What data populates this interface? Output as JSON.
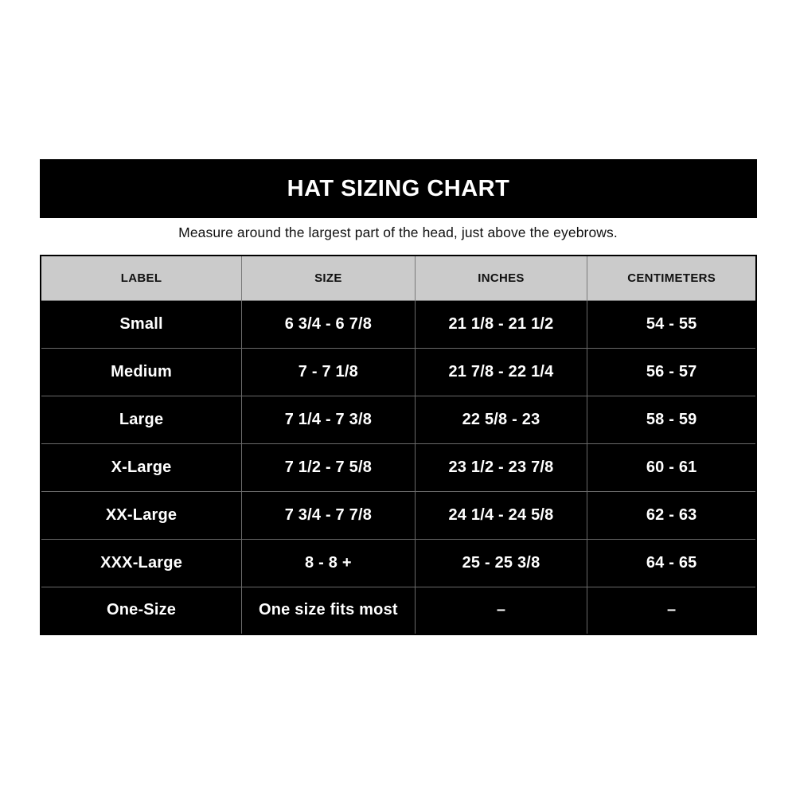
{
  "banner": {
    "title": "HAT SIZING CHART",
    "bg_color": "#000000",
    "text_color": "#ffffff"
  },
  "subtitle": "Measure around the largest part of the head, just above the eyebrows.",
  "table": {
    "header_bg": "#cbcbcb",
    "header_text_color": "#111111",
    "row_bg": "#000000",
    "row_text_color": "#ffffff",
    "grid_line_color": "#6a6a6a",
    "outer_border_color": "#000000",
    "columns": [
      "LABEL",
      "SIZE",
      "INCHES",
      "CENTIMETERS"
    ],
    "rows": [
      [
        "Small",
        "6 3/4 - 6 7/8",
        "21 1/8 - 21 1/2",
        "54 - 55"
      ],
      [
        "Medium",
        "7 - 7 1/8",
        "21 7/8 - 22 1/4",
        "56 - 57"
      ],
      [
        "Large",
        "7 1/4 - 7 3/8",
        "22 5/8 - 23",
        "58 - 59"
      ],
      [
        "X-Large",
        "7 1/2 - 7 5/8",
        "23 1/2 - 23 7/8",
        "60 - 61"
      ],
      [
        "XX-Large",
        "7 3/4 - 7 7/8",
        "24 1/4 - 24 5/8",
        "62 - 63"
      ],
      [
        "XXX-Large",
        "8 - 8 +",
        "25 - 25 3/8",
        "64 - 65"
      ],
      [
        "One-Size",
        "One size fits most",
        "–",
        "–"
      ]
    ]
  },
  "chart_data": {
    "type": "table",
    "title": "HAT SIZING CHART",
    "subtitle": "Measure around the largest part of the head, just above the eyebrows.",
    "columns": [
      "LABEL",
      "SIZE",
      "INCHES",
      "CENTIMETERS"
    ],
    "rows": [
      [
        "Small",
        "6 3/4 - 6 7/8",
        "21 1/8 - 21 1/2",
        "54 - 55"
      ],
      [
        "Medium",
        "7 - 7 1/8",
        "21 7/8 - 22 1/4",
        "56 - 57"
      ],
      [
        "Large",
        "7 1/4 - 7 3/8",
        "22 5/8 - 23",
        "58 - 59"
      ],
      [
        "X-Large",
        "7 1/2 - 7 5/8",
        "23 1/2 - 23 7/8",
        "60 - 61"
      ],
      [
        "XX-Large",
        "7 3/4 - 7 7/8",
        "24 1/4 - 24 5/8",
        "62 - 63"
      ],
      [
        "XXX-Large",
        "8 - 8 +",
        "25 - 25 3/8",
        "64 - 65"
      ],
      [
        "One-Size",
        "One size fits most",
        "–",
        "–"
      ]
    ]
  }
}
